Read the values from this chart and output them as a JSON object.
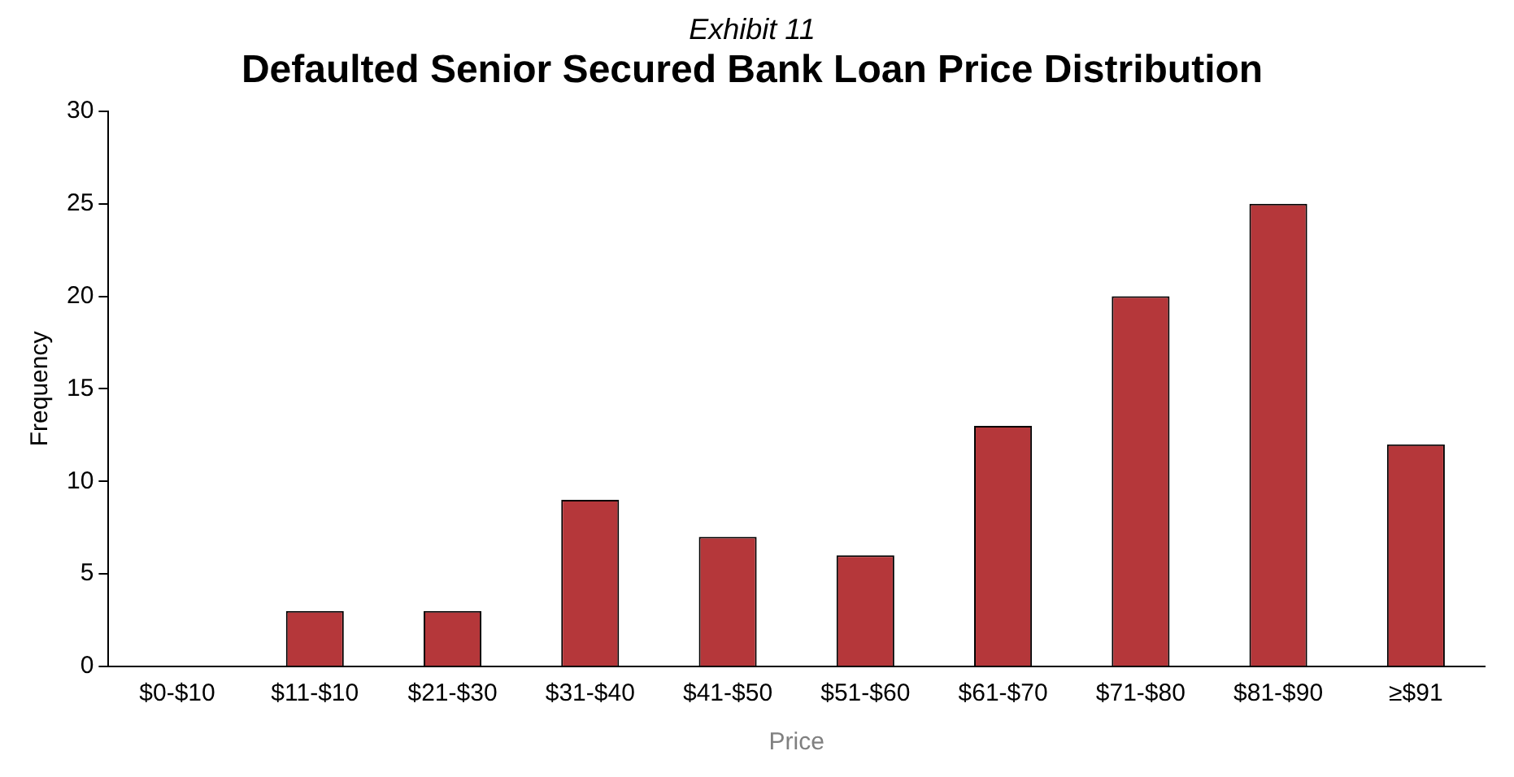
{
  "chart_data": {
    "type": "bar",
    "subtitle": "Exhibit 11",
    "title": "Defaulted Senior Secured Bank Loan Price Distribution",
    "xlabel": "Price",
    "ylabel": "Frequency",
    "categories": [
      "$0-$10",
      "$11-$10",
      "$21-$30",
      "$31-$40",
      "$41-$50",
      "$51-$60",
      "$61-$70",
      "$71-$80",
      "$81-$90",
      "≥$91"
    ],
    "values": [
      0,
      3,
      3,
      9,
      7,
      6,
      13,
      20,
      25,
      12
    ],
    "color": "#b5373a",
    "ylim": [
      0,
      30
    ],
    "yticks": [
      0,
      5,
      10,
      15,
      20,
      25,
      30
    ],
    "grid": false,
    "legend": false
  }
}
